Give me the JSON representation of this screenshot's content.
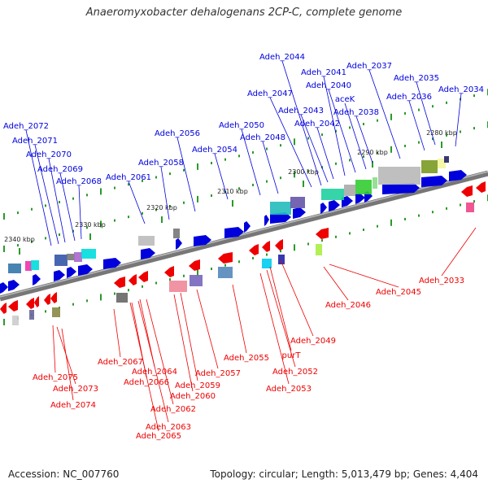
{
  "title": "Anaeromyxobacter dehalogenans 2CP-C, complete genome",
  "accession_text": "Accession: NC_007760",
  "topology_text": "Topology: circular; Length: 5,013,479 bp; Genes: 4,404",
  "colors": {
    "forward": "#0000dd",
    "reverse": "#ee0000",
    "backbone": "#888888"
  },
  "ticks": [
    "2280 kbp",
    "2290 kbp",
    "2300 kbp",
    "2310 kbp",
    "2320 kbp",
    "2330 kbp",
    "2340 kbp"
  ],
  "forward_labels": [
    "Adeh_2034",
    "Adeh_2035",
    "Adeh_2036",
    "Adeh_2037",
    "Adeh_2038",
    "aceK",
    "Adeh_2040",
    "Adeh_2041",
    "Adeh_2042",
    "Adeh_2043",
    "Adeh_2044",
    "Adeh_2047",
    "Adeh_2048",
    "Adeh_2050",
    "Adeh_2054",
    "Adeh_2056",
    "Adeh_2058",
    "Adeh_2061",
    "Adeh_2068",
    "Adeh_2069",
    "Adeh_2070",
    "Adeh_2071",
    "Adeh_2072"
  ],
  "reverse_labels": [
    "Adeh_2033",
    "Adeh_2045",
    "Adeh_2046",
    "Adeh_2049",
    "purT",
    "Adeh_2052",
    "Adeh_2053",
    "Adeh_2055",
    "Adeh_2057",
    "Adeh_2059",
    "Adeh_2060",
    "Adeh_2062",
    "Adeh_2063",
    "Adeh_2064",
    "Adeh_2065",
    "Adeh_2066",
    "Adeh_2067",
    "Adeh_2073",
    "Adeh_2074",
    "Adeh_2075"
  ]
}
